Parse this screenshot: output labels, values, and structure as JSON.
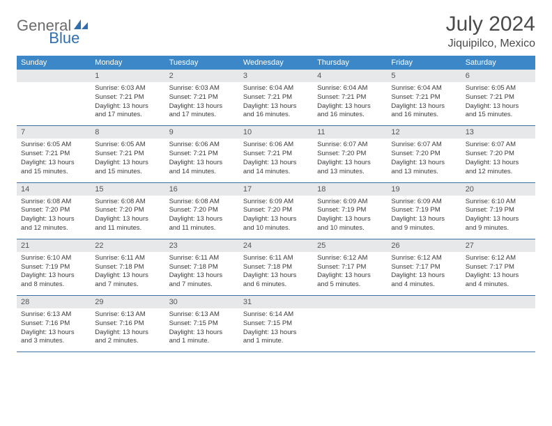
{
  "logo": {
    "text1": "General",
    "text2": "Blue"
  },
  "title": "July 2024",
  "location": "Jiquipilco, Mexico",
  "colors": {
    "header_bg": "#3b87c8",
    "header_text": "#ffffff",
    "daynum_bg": "#e7e8e9",
    "row_border": "#3b6fa0",
    "logo_gray": "#6c6c6c",
    "logo_blue": "#2f6fb0"
  },
  "day_headers": [
    "Sunday",
    "Monday",
    "Tuesday",
    "Wednesday",
    "Thursday",
    "Friday",
    "Saturday"
  ],
  "weeks": [
    [
      {
        "n": "",
        "sr": "",
        "ss": "",
        "dl": ""
      },
      {
        "n": "1",
        "sr": "Sunrise: 6:03 AM",
        "ss": "Sunset: 7:21 PM",
        "dl": "Daylight: 13 hours and 17 minutes."
      },
      {
        "n": "2",
        "sr": "Sunrise: 6:03 AM",
        "ss": "Sunset: 7:21 PM",
        "dl": "Daylight: 13 hours and 17 minutes."
      },
      {
        "n": "3",
        "sr": "Sunrise: 6:04 AM",
        "ss": "Sunset: 7:21 PM",
        "dl": "Daylight: 13 hours and 16 minutes."
      },
      {
        "n": "4",
        "sr": "Sunrise: 6:04 AM",
        "ss": "Sunset: 7:21 PM",
        "dl": "Daylight: 13 hours and 16 minutes."
      },
      {
        "n": "5",
        "sr": "Sunrise: 6:04 AM",
        "ss": "Sunset: 7:21 PM",
        "dl": "Daylight: 13 hours and 16 minutes."
      },
      {
        "n": "6",
        "sr": "Sunrise: 6:05 AM",
        "ss": "Sunset: 7:21 PM",
        "dl": "Daylight: 13 hours and 15 minutes."
      }
    ],
    [
      {
        "n": "7",
        "sr": "Sunrise: 6:05 AM",
        "ss": "Sunset: 7:21 PM",
        "dl": "Daylight: 13 hours and 15 minutes."
      },
      {
        "n": "8",
        "sr": "Sunrise: 6:05 AM",
        "ss": "Sunset: 7:21 PM",
        "dl": "Daylight: 13 hours and 15 minutes."
      },
      {
        "n": "9",
        "sr": "Sunrise: 6:06 AM",
        "ss": "Sunset: 7:21 PM",
        "dl": "Daylight: 13 hours and 14 minutes."
      },
      {
        "n": "10",
        "sr": "Sunrise: 6:06 AM",
        "ss": "Sunset: 7:21 PM",
        "dl": "Daylight: 13 hours and 14 minutes."
      },
      {
        "n": "11",
        "sr": "Sunrise: 6:07 AM",
        "ss": "Sunset: 7:20 PM",
        "dl": "Daylight: 13 hours and 13 minutes."
      },
      {
        "n": "12",
        "sr": "Sunrise: 6:07 AM",
        "ss": "Sunset: 7:20 PM",
        "dl": "Daylight: 13 hours and 13 minutes."
      },
      {
        "n": "13",
        "sr": "Sunrise: 6:07 AM",
        "ss": "Sunset: 7:20 PM",
        "dl": "Daylight: 13 hours and 12 minutes."
      }
    ],
    [
      {
        "n": "14",
        "sr": "Sunrise: 6:08 AM",
        "ss": "Sunset: 7:20 PM",
        "dl": "Daylight: 13 hours and 12 minutes."
      },
      {
        "n": "15",
        "sr": "Sunrise: 6:08 AM",
        "ss": "Sunset: 7:20 PM",
        "dl": "Daylight: 13 hours and 11 minutes."
      },
      {
        "n": "16",
        "sr": "Sunrise: 6:08 AM",
        "ss": "Sunset: 7:20 PM",
        "dl": "Daylight: 13 hours and 11 minutes."
      },
      {
        "n": "17",
        "sr": "Sunrise: 6:09 AM",
        "ss": "Sunset: 7:20 PM",
        "dl": "Daylight: 13 hours and 10 minutes."
      },
      {
        "n": "18",
        "sr": "Sunrise: 6:09 AM",
        "ss": "Sunset: 7:19 PM",
        "dl": "Daylight: 13 hours and 10 minutes."
      },
      {
        "n": "19",
        "sr": "Sunrise: 6:09 AM",
        "ss": "Sunset: 7:19 PM",
        "dl": "Daylight: 13 hours and 9 minutes."
      },
      {
        "n": "20",
        "sr": "Sunrise: 6:10 AM",
        "ss": "Sunset: 7:19 PM",
        "dl": "Daylight: 13 hours and 9 minutes."
      }
    ],
    [
      {
        "n": "21",
        "sr": "Sunrise: 6:10 AM",
        "ss": "Sunset: 7:19 PM",
        "dl": "Daylight: 13 hours and 8 minutes."
      },
      {
        "n": "22",
        "sr": "Sunrise: 6:11 AM",
        "ss": "Sunset: 7:18 PM",
        "dl": "Daylight: 13 hours and 7 minutes."
      },
      {
        "n": "23",
        "sr": "Sunrise: 6:11 AM",
        "ss": "Sunset: 7:18 PM",
        "dl": "Daylight: 13 hours and 7 minutes."
      },
      {
        "n": "24",
        "sr": "Sunrise: 6:11 AM",
        "ss": "Sunset: 7:18 PM",
        "dl": "Daylight: 13 hours and 6 minutes."
      },
      {
        "n": "25",
        "sr": "Sunrise: 6:12 AM",
        "ss": "Sunset: 7:17 PM",
        "dl": "Daylight: 13 hours and 5 minutes."
      },
      {
        "n": "26",
        "sr": "Sunrise: 6:12 AM",
        "ss": "Sunset: 7:17 PM",
        "dl": "Daylight: 13 hours and 4 minutes."
      },
      {
        "n": "27",
        "sr": "Sunrise: 6:12 AM",
        "ss": "Sunset: 7:17 PM",
        "dl": "Daylight: 13 hours and 4 minutes."
      }
    ],
    [
      {
        "n": "28",
        "sr": "Sunrise: 6:13 AM",
        "ss": "Sunset: 7:16 PM",
        "dl": "Daylight: 13 hours and 3 minutes."
      },
      {
        "n": "29",
        "sr": "Sunrise: 6:13 AM",
        "ss": "Sunset: 7:16 PM",
        "dl": "Daylight: 13 hours and 2 minutes."
      },
      {
        "n": "30",
        "sr": "Sunrise: 6:13 AM",
        "ss": "Sunset: 7:15 PM",
        "dl": "Daylight: 13 hours and 1 minute."
      },
      {
        "n": "31",
        "sr": "Sunrise: 6:14 AM",
        "ss": "Sunset: 7:15 PM",
        "dl": "Daylight: 13 hours and 1 minute."
      },
      {
        "n": "",
        "sr": "",
        "ss": "",
        "dl": ""
      },
      {
        "n": "",
        "sr": "",
        "ss": "",
        "dl": ""
      },
      {
        "n": "",
        "sr": "",
        "ss": "",
        "dl": ""
      }
    ]
  ]
}
